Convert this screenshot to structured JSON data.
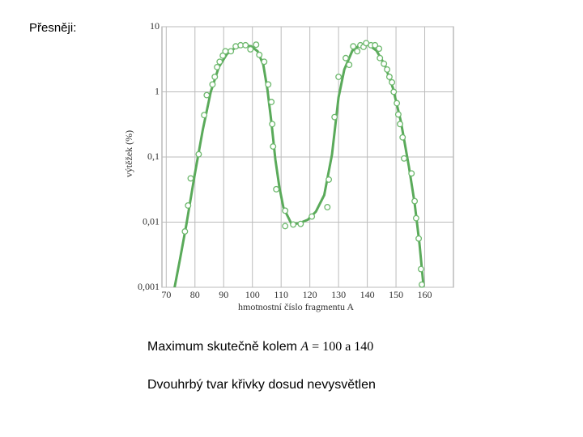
{
  "slide": {
    "heading": "Přesněji:",
    "note1": [
      "Maximum skutečně kolem ",
      "A",
      " = 100 a 140"
    ],
    "note2": "Dvouhrbý tvar křivky dosud nevysvětlen"
  },
  "chart_data": {
    "type": "scatter",
    "xlabel": "hmotnostní číslo fragmentu A",
    "ylabel": "výtěžek (%)",
    "xlim": [
      68.5,
      170
    ],
    "ylim": [
      0.001,
      10
    ],
    "log_y": true,
    "grid": true,
    "xticks": [
      70,
      80,
      90,
      100,
      110,
      120,
      130,
      140,
      150,
      160
    ],
    "yticks": [
      {
        "value": 0.001,
        "label": "0,001"
      },
      {
        "value": 0.01,
        "label": "0,01"
      },
      {
        "value": 0.1,
        "label": "0,1"
      },
      1,
      10
    ],
    "points": {
      "color": "#6db86d",
      "x": [
        76.5,
        77.6,
        78.5,
        81.3,
        83.2,
        84.1,
        86.1,
        86.9,
        87.7,
        88.6,
        89.7,
        90.6,
        92.5,
        94.2,
        95.9,
        97.6,
        99.3,
        101.3,
        102.4,
        104.1,
        105.5,
        106.6,
        106.9,
        107.2,
        108.3,
        111.4,
        111.4,
        114.2,
        116.8,
        120.7,
        126.1,
        126.6,
        128.6,
        130,
        132.5,
        133.7,
        135.1,
        136.5,
        137.6,
        138.7,
        139.6,
        141.3,
        142.7,
        144.1,
        144.4,
        145.8,
        146.9,
        147.7,
        148.6,
        149.2,
        150.3,
        150.8,
        151.4,
        152.3,
        152.8,
        155.4,
        156.5,
        157,
        157.9,
        158.7,
        159
      ],
      "y": [
        0.0072,
        0.018,
        0.047,
        0.11,
        0.44,
        0.89,
        1.3,
        1.7,
        2.4,
        2.9,
        3.6,
        4.2,
        4.2,
        5.0,
        5.2,
        5.2,
        4.5,
        5.3,
        3.7,
        2.9,
        1.3,
        0.7,
        0.32,
        0.145,
        0.032,
        0.015,
        0.0087,
        0.0092,
        0.0094,
        0.0122,
        0.017,
        0.045,
        0.41,
        1.7,
        3.3,
        2.6,
        5.0,
        4.2,
        5.2,
        4.9,
        5.6,
        5.2,
        5.2,
        4.6,
        3.3,
        2.7,
        2.2,
        1.7,
        1.4,
        1.0,
        0.67,
        0.45,
        0.32,
        0.2,
        0.095,
        0.056,
        0.021,
        0.0115,
        0.0056,
        0.0019,
        0.0011
      ]
    },
    "curve": {
      "color": "#5aaa5a",
      "x": [
        72.8,
        74.8,
        77,
        79.9,
        82.7,
        85.5,
        88.3,
        91.1,
        93.9,
        96.8,
        99.6,
        101.8,
        103.8,
        105.2,
        106.6,
        108,
        109.4,
        110.8,
        113.7,
        116.5,
        119.3,
        122.1,
        125,
        127.7,
        130,
        132,
        134.8,
        137.6,
        140.4,
        143.2,
        146.1,
        148.9,
        151.7,
        154.5,
        156.5,
        158.2,
        159.6
      ],
      "y": [
        0.00095,
        0.0027,
        0.0091,
        0.053,
        0.26,
        1.0,
        2.4,
        3.8,
        4.7,
        5.2,
        5.0,
        4.2,
        2.6,
        1.1,
        0.35,
        0.091,
        0.034,
        0.0168,
        0.0092,
        0.0097,
        0.0109,
        0.0145,
        0.026,
        0.109,
        0.82,
        2.2,
        4.3,
        5.3,
        5.3,
        4.3,
        2.6,
        1.15,
        0.35,
        0.071,
        0.0194,
        0.0046,
        0.00103
      ]
    }
  }
}
